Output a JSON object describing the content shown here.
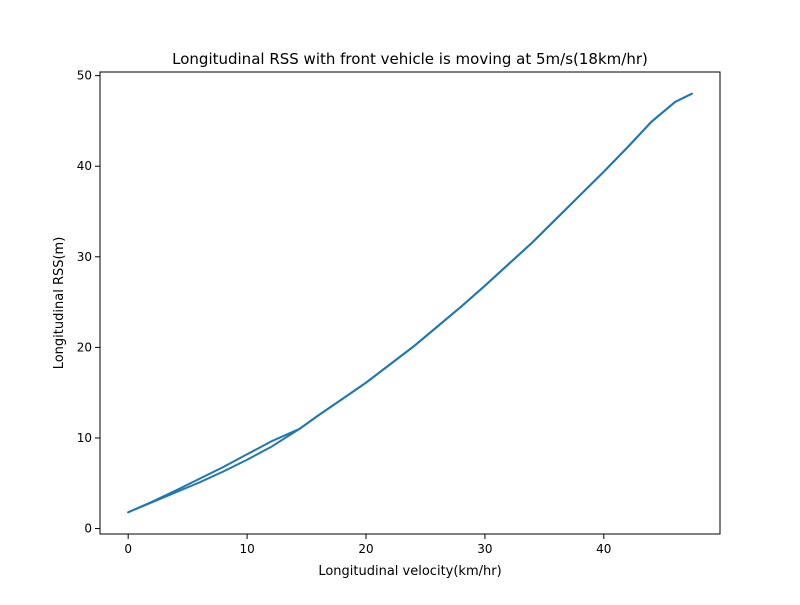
{
  "chart_data": {
    "type": "line",
    "title": "Longitudinal RSS with front vehicle is moving at 5m/s(18km/hr)",
    "xlabel": "Longitudinal velocity(km/hr)",
    "ylabel": "Longitudinal RSS(m)",
    "xlim": [
      -2.37,
      49.77
    ],
    "ylim": [
      -0.6,
      50.4
    ],
    "xticks": [
      0,
      10,
      20,
      30,
      40
    ],
    "yticks": [
      0,
      10,
      20,
      30,
      40,
      50
    ],
    "grid": false,
    "series": [
      {
        "color": "#1f77b4",
        "x": [
          0,
          2,
          4,
          6,
          8,
          10,
          12,
          14.4,
          16,
          18,
          20,
          22,
          24,
          26,
          28,
          30,
          32,
          34,
          36,
          38,
          40,
          42,
          44,
          46,
          47.4
        ],
        "y": [
          1.8,
          2.9,
          4.0,
          5.1,
          6.3,
          7.6,
          9.0,
          11.0,
          12.5,
          14.3,
          16.1,
          18.1,
          20.1,
          22.3,
          24.5,
          26.8,
          29.2,
          31.6,
          34.2,
          36.8,
          39.4,
          42.1,
          44.9,
          47.1,
          48.0
        ]
      },
      {
        "color": "#1f77b4",
        "x": [
          0,
          2,
          4,
          6,
          8,
          10,
          12,
          14.4,
          16,
          18,
          20,
          22,
          24,
          26,
          28,
          30,
          32,
          34,
          36,
          38,
          40,
          42,
          44,
          46,
          47.4
        ],
        "y": [
          1.8,
          2.95,
          4.2,
          5.5,
          6.8,
          8.2,
          9.6,
          11.0,
          12.5,
          14.3,
          16.1,
          18.1,
          20.1,
          22.3,
          24.5,
          26.8,
          29.2,
          31.6,
          34.2,
          36.8,
          39.4,
          42.1,
          44.9,
          47.1,
          48.0
        ]
      }
    ]
  }
}
